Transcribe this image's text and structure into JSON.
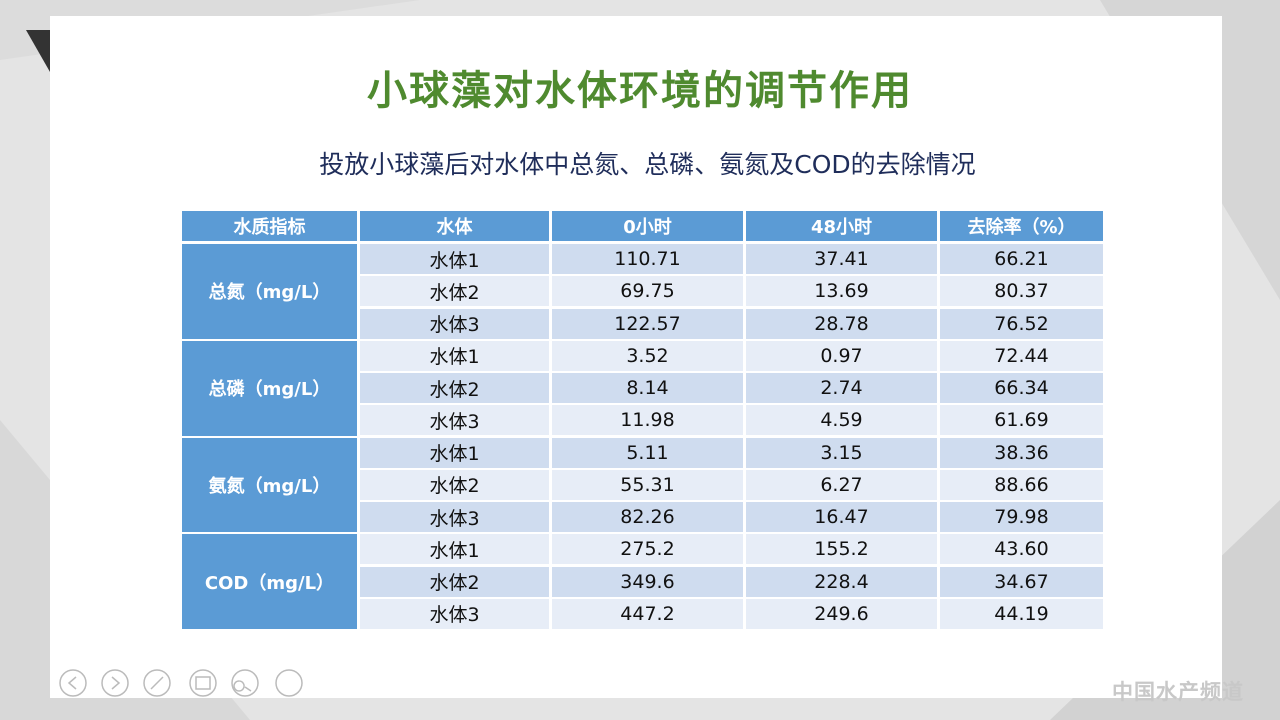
{
  "title": "小球藻对水体环境的调节作用",
  "subtitle": "投放小球藻后对水体中总氮、总磷、氨氮及COD的去除情况",
  "table": {
    "header": [
      "水质指标",
      "水体",
      "0小时",
      "48小时",
      "去除率（%）"
    ],
    "groups": [
      {
        "label": "总氮（mg/L）",
        "rows": [
          [
            "水体1",
            "110.71",
            "37.41",
            "66.21"
          ],
          [
            "水体2",
            "69.75",
            "13.69",
            "80.37"
          ],
          [
            "水体3",
            "122.57",
            "28.78",
            "76.52"
          ]
        ]
      },
      {
        "label": "总磷（mg/L）",
        "rows": [
          [
            "水体1",
            "3.52",
            "0.97",
            "72.44"
          ],
          [
            "水体2",
            "8.14",
            "2.74",
            "66.34"
          ],
          [
            "水体3",
            "11.98",
            "4.59",
            "61.69"
          ]
        ]
      },
      {
        "label": "氨氮（mg/L）",
        "rows": [
          [
            "水体1",
            "5.11",
            "3.15",
            "38.36"
          ],
          [
            "水体2",
            "55.31",
            "6.27",
            "88.66"
          ],
          [
            "水体3",
            "82.26",
            "16.47",
            "79.98"
          ]
        ]
      },
      {
        "label": "COD（mg/L）",
        "rows": [
          [
            "水体1",
            "275.2",
            "155.2",
            "43.60"
          ],
          [
            "水体2",
            "349.6",
            "228.4",
            "34.67"
          ],
          [
            "水体3",
            "447.2",
            "249.6",
            "44.19"
          ]
        ]
      }
    ]
  },
  "watermark": "中国水产频道"
}
